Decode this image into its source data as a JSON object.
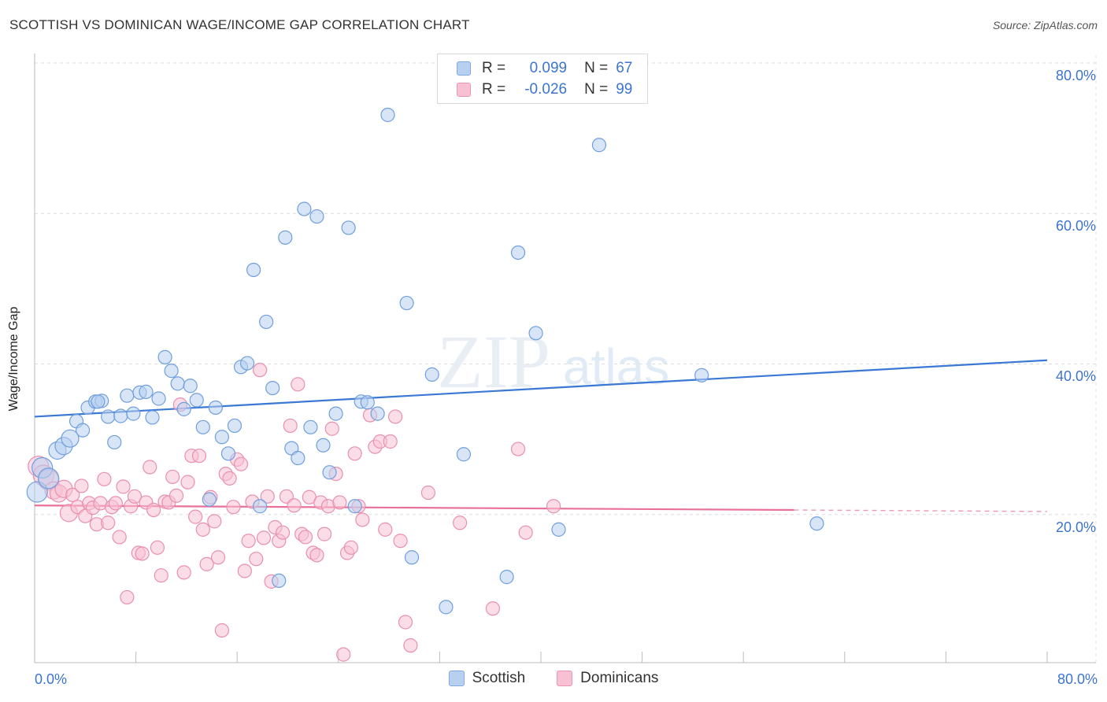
{
  "header": {
    "title": "SCOTTISH VS DOMINICAN WAGE/INCOME GAP CORRELATION CHART",
    "source": "Source: ZipAtlas.com"
  },
  "watermark": "ZIPatlas",
  "colors": {
    "blue": "#3a78d4",
    "blue_fill": "#b8d0f0",
    "pink": "#e8709a",
    "pink_fill": "#f7c1d3",
    "tick_text": "#3c74cc"
  },
  "legend": {
    "r_label": "R =",
    "n_label": "N =",
    "rows": [
      {
        "r": "0.099",
        "n": "67"
      },
      {
        "r": "-0.026",
        "n": "99"
      }
    ]
  },
  "bottom_legend": [
    "Scottish",
    "Dominicans"
  ],
  "chart_data": {
    "type": "scatter",
    "title": "SCOTTISH VS DOMINICAN WAGE/INCOME GAP CORRELATION CHART",
    "xlabel": "",
    "ylabel": "Wage/Income Gap",
    "xlim": [
      0,
      80
    ],
    "ylim": [
      0,
      80
    ],
    "x_tick_labels": [
      "0.0%",
      "80.0%"
    ],
    "y_tick_labels": [
      "80.0%",
      "60.0%",
      "40.0%",
      "20.0%"
    ],
    "y_gridlines": [
      20,
      40,
      60,
      80
    ],
    "grid": true,
    "series": [
      {
        "name": "Scottish",
        "r": 0.099,
        "n": 67,
        "trend": {
          "x": [
            0,
            80
          ],
          "y": [
            33.0,
            40.5
          ]
        },
        "points": [
          [
            0.2,
            23.0
          ],
          [
            0.6,
            26.2
          ],
          [
            1.1,
            24.8
          ],
          [
            1.8,
            28.5
          ],
          [
            2.3,
            29.1
          ],
          [
            2.8,
            30.1
          ],
          [
            3.3,
            32.4
          ],
          [
            3.8,
            31.2
          ],
          [
            4.2,
            34.2
          ],
          [
            4.8,
            35.0
          ],
          [
            5.3,
            35.1
          ],
          [
            5.8,
            33.0
          ],
          [
            6.3,
            29.6
          ],
          [
            6.8,
            33.1
          ],
          [
            7.3,
            35.8
          ],
          [
            7.8,
            33.4
          ],
          [
            8.3,
            36.2
          ],
          [
            8.8,
            36.3
          ],
          [
            9.3,
            32.9
          ],
          [
            9.8,
            35.4
          ],
          [
            10.3,
            40.9
          ],
          [
            10.8,
            39.1
          ],
          [
            11.3,
            37.4
          ],
          [
            11.8,
            34.0
          ],
          [
            12.3,
            37.1
          ],
          [
            12.8,
            35.2
          ],
          [
            13.3,
            31.6
          ],
          [
            13.8,
            22.0
          ],
          [
            14.3,
            34.2
          ],
          [
            14.8,
            30.3
          ],
          [
            15.3,
            28.1
          ],
          [
            15.8,
            31.8
          ],
          [
            16.3,
            39.6
          ],
          [
            16.8,
            40.1
          ],
          [
            17.3,
            52.5
          ],
          [
            17.8,
            21.1
          ],
          [
            18.3,
            45.6
          ],
          [
            18.8,
            36.8
          ],
          [
            19.3,
            11.2
          ],
          [
            19.8,
            56.8
          ],
          [
            20.3,
            28.8
          ],
          [
            20.8,
            27.5
          ],
          [
            21.3,
            60.6
          ],
          [
            21.8,
            31.6
          ],
          [
            22.3,
            59.6
          ],
          [
            22.8,
            29.2
          ],
          [
            23.3,
            25.6
          ],
          [
            23.8,
            33.4
          ],
          [
            24.8,
            58.1
          ],
          [
            25.3,
            21.1
          ],
          [
            25.8,
            35.0
          ],
          [
            26.3,
            34.9
          ],
          [
            27.1,
            33.4
          ],
          [
            27.9,
            73.1
          ],
          [
            29.4,
            48.1
          ],
          [
            29.8,
            14.3
          ],
          [
            31.4,
            38.6
          ],
          [
            32.5,
            7.7
          ],
          [
            33.9,
            28.0
          ],
          [
            37.3,
            11.7
          ],
          [
            38.2,
            54.8
          ],
          [
            39.6,
            44.1
          ],
          [
            41.4,
            18.0
          ],
          [
            44.6,
            69.1
          ],
          [
            52.7,
            38.5
          ],
          [
            61.8,
            18.8
          ],
          [
            5.0,
            35.0
          ]
        ]
      },
      {
        "name": "Dominicans",
        "r": -0.026,
        "n": 99,
        "trend": {
          "x": [
            0,
            60
          ],
          "y": [
            21.2,
            20.6
          ]
        },
        "points": [
          [
            0.3,
            26.4
          ],
          [
            0.7,
            25.2
          ],
          [
            1.1,
            24.6
          ],
          [
            1.5,
            23.2
          ],
          [
            1.9,
            22.8
          ],
          [
            2.3,
            23.4
          ],
          [
            2.7,
            20.2
          ],
          [
            3.0,
            22.6
          ],
          [
            3.4,
            21.0
          ],
          [
            3.7,
            23.8
          ],
          [
            4.0,
            19.8
          ],
          [
            4.3,
            21.5
          ],
          [
            4.6,
            20.9
          ],
          [
            4.9,
            18.7
          ],
          [
            5.2,
            21.5
          ],
          [
            5.5,
            24.7
          ],
          [
            5.8,
            18.9
          ],
          [
            6.1,
            21.0
          ],
          [
            6.4,
            21.5
          ],
          [
            6.7,
            17.0
          ],
          [
            7.0,
            23.7
          ],
          [
            7.3,
            9.0
          ],
          [
            7.6,
            21.1
          ],
          [
            7.9,
            22.4
          ],
          [
            8.2,
            14.9
          ],
          [
            8.5,
            14.8
          ],
          [
            8.8,
            21.6
          ],
          [
            9.1,
            26.3
          ],
          [
            9.4,
            20.6
          ],
          [
            9.7,
            15.6
          ],
          [
            10.0,
            11.9
          ],
          [
            10.3,
            21.7
          ],
          [
            10.6,
            21.6
          ],
          [
            10.9,
            25.0
          ],
          [
            11.2,
            22.5
          ],
          [
            11.5,
            34.6
          ],
          [
            11.8,
            12.3
          ],
          [
            12.1,
            24.3
          ],
          [
            12.4,
            27.8
          ],
          [
            12.7,
            19.7
          ],
          [
            13.0,
            27.8
          ],
          [
            13.3,
            18.0
          ],
          [
            13.6,
            13.4
          ],
          [
            13.9,
            22.3
          ],
          [
            14.2,
            19.1
          ],
          [
            14.5,
            14.3
          ],
          [
            14.8,
            4.6
          ],
          [
            15.1,
            25.4
          ],
          [
            15.4,
            24.8
          ],
          [
            15.7,
            21.0
          ],
          [
            16.0,
            27.3
          ],
          [
            16.3,
            26.7
          ],
          [
            16.6,
            12.5
          ],
          [
            16.9,
            16.5
          ],
          [
            17.2,
            21.7
          ],
          [
            17.5,
            14.1
          ],
          [
            17.8,
            39.2
          ],
          [
            18.1,
            16.9
          ],
          [
            18.4,
            22.4
          ],
          [
            18.7,
            11.1
          ],
          [
            19.0,
            18.3
          ],
          [
            19.3,
            16.5
          ],
          [
            19.6,
            17.6
          ],
          [
            19.9,
            22.4
          ],
          [
            20.2,
            31.8
          ],
          [
            20.5,
            21.2
          ],
          [
            20.8,
            37.3
          ],
          [
            21.1,
            17.4
          ],
          [
            21.4,
            17.0
          ],
          [
            21.7,
            22.3
          ],
          [
            22.0,
            14.9
          ],
          [
            22.3,
            14.6
          ],
          [
            22.6,
            21.6
          ],
          [
            22.9,
            17.4
          ],
          [
            23.2,
            21.1
          ],
          [
            23.5,
            31.4
          ],
          [
            23.8,
            25.4
          ],
          [
            24.1,
            21.6
          ],
          [
            24.4,
            1.4
          ],
          [
            24.7,
            14.9
          ],
          [
            25.0,
            15.6
          ],
          [
            25.3,
            28.1
          ],
          [
            25.6,
            21.1
          ],
          [
            25.9,
            19.3
          ],
          [
            26.5,
            33.2
          ],
          [
            26.9,
            29.0
          ],
          [
            27.3,
            29.7
          ],
          [
            27.7,
            18.0
          ],
          [
            28.1,
            29.7
          ],
          [
            28.5,
            33.0
          ],
          [
            28.9,
            16.5
          ],
          [
            29.3,
            5.7
          ],
          [
            29.7,
            2.6
          ],
          [
            31.1,
            22.9
          ],
          [
            33.6,
            18.9
          ],
          [
            36.2,
            7.5
          ],
          [
            38.2,
            28.7
          ],
          [
            38.8,
            17.6
          ],
          [
            41.0,
            21.1
          ]
        ]
      }
    ]
  }
}
